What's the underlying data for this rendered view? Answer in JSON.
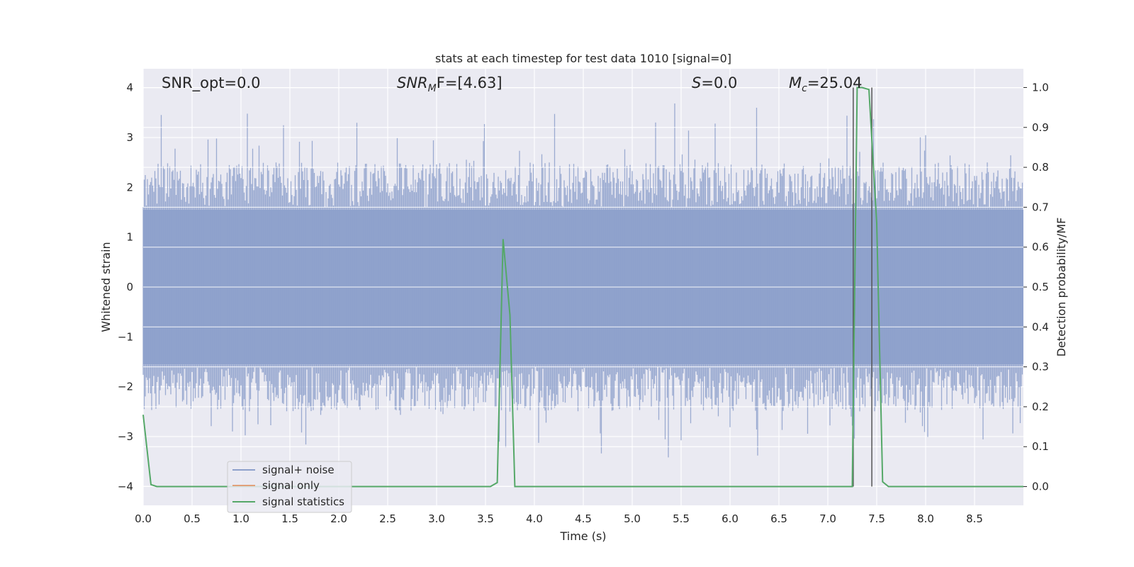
{
  "chart_data": {
    "type": "line",
    "title": "stats at each timestep for test data 1010 [signal=0]",
    "xlabel": "Time (s)",
    "ylabel_left": "Whitened strain",
    "ylabel_right": "Detection probability/MF",
    "xlim": [
      0,
      9.0
    ],
    "ylim_left": [
      -4.38,
      4.38
    ],
    "ylim_right": [
      -0.047,
      1.047
    ],
    "x_ticks": [
      "0.0",
      "0.5",
      "1.0",
      "1.5",
      "2.0",
      "2.5",
      "3.0",
      "3.5",
      "4.0",
      "4.5",
      "5.0",
      "5.5",
      "6.0",
      "6.5",
      "7.0",
      "7.5",
      "8.0",
      "8.5"
    ],
    "y_ticks_left": [
      "4",
      "3",
      "2",
      "1",
      "0",
      "−1",
      "−2",
      "−3",
      "−4"
    ],
    "y_ticks_right": [
      "1.0",
      "0.9",
      "0.8",
      "0.7",
      "0.6",
      "0.5",
      "0.4",
      "0.3",
      "0.2",
      "0.1",
      "0.0"
    ],
    "grid": true,
    "legend_placement": "lower-left",
    "annotations": {
      "snr_opt": "SNR_opt=0.0",
      "snr_mf_base": "SNR",
      "snr_mf_sub": "M",
      "snr_mf_rest": "F=[4.63]",
      "s_base": "S",
      "s_rest": "=0.0",
      "mc_base": "M",
      "mc_sub": "c",
      "mc_rest": "=25.04"
    },
    "series": [
      {
        "name": "signal+ noise",
        "color": "#8da0cb",
        "description_level": "noise band roughly between -2.5 and 2.5 with spikes to ~4.0 and ~-3.9"
      },
      {
        "name": "signal only",
        "color": "#e1a07a",
        "x": [],
        "y": []
      },
      {
        "name": "signal statistics",
        "color": "#55a868",
        "x": [
          0.0,
          0.08,
          0.14,
          3.55,
          3.62,
          3.68,
          3.75,
          3.8,
          3.9,
          7.25,
          7.3,
          7.35,
          7.42,
          7.5,
          7.56,
          7.62,
          9.0
        ],
        "y": [
          0.18,
          0.005,
          0.0,
          0.0,
          0.01,
          0.62,
          0.43,
          0.0,
          0.0,
          0.0,
          1.0,
          1.0,
          0.995,
          0.66,
          0.012,
          0.0,
          0.0
        ]
      }
    ],
    "vertical_lines": [
      {
        "x": 7.26,
        "y_from": 1.0,
        "y_to": 0.0
      },
      {
        "x": 7.45,
        "y_from": 1.0,
        "y_to": 0.0
      }
    ]
  }
}
